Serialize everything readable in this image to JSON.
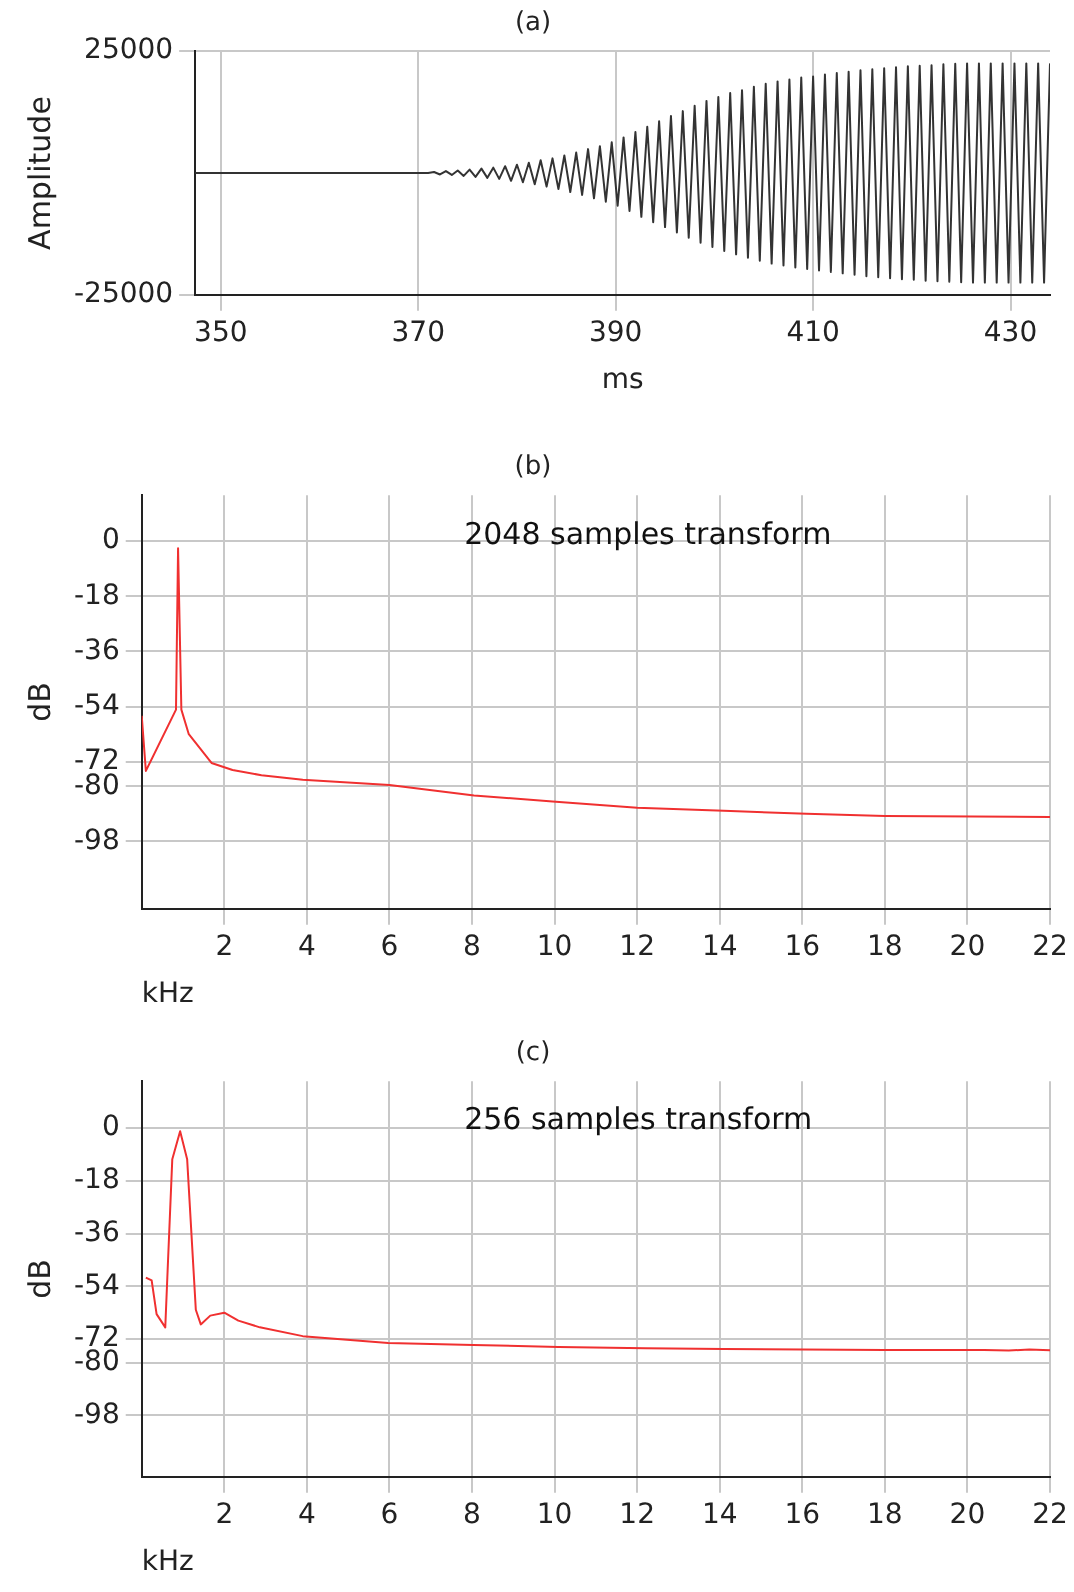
{
  "chart_data": [
    {
      "type": "line",
      "title": "(a)",
      "xlabel": "ms",
      "ylabel": "Amplitude",
      "xlim": [
        347.4,
        434
      ],
      "xticks": [
        350,
        370,
        390,
        410,
        430
      ],
      "ylim": [
        -25000,
        25000
      ],
      "yticks": [
        -25000,
        25000
      ],
      "grid": true,
      "legend": false,
      "series": [
        {
          "color": "#333333",
          "x": [
            347.4,
            371,
            371.6,
            372.2,
            372.8,
            373.4,
            374.0,
            374.6,
            375.2,
            375.8,
            376.4,
            377.0,
            377.6,
            378.2,
            378.8,
            379.4,
            380.0,
            380.6,
            381.2,
            381.8,
            382.4,
            383.0,
            383.6,
            384.2,
            384.8,
            385.4,
            386.0,
            386.6,
            387.2,
            387.8,
            388.4,
            389.0,
            389.6,
            390.2,
            390.8,
            391.4,
            392.0,
            392.6,
            393.2,
            393.8,
            394.4,
            395.0,
            395.6,
            396.2,
            396.8,
            397.4,
            398.0,
            398.6,
            399.2,
            399.8,
            400.4,
            401.0,
            401.6,
            402.2,
            402.8,
            403.4,
            404.0,
            404.6,
            405.2,
            405.8,
            406.4,
            407.0,
            407.6,
            408.2,
            408.8,
            409.4,
            410.0,
            410.6,
            411.2,
            411.8,
            412.4,
            413.0,
            413.6,
            414.2,
            414.8,
            415.4,
            416.0,
            416.6,
            417.2,
            417.8,
            418.4,
            419.0,
            419.6,
            420.2,
            420.8,
            421.4,
            422.0,
            422.6,
            423.2,
            423.8,
            424.4,
            425.0,
            425.6,
            426.2,
            426.8,
            427.4,
            428.0,
            428.6,
            429.2,
            429.8,
            430.4,
            431.0,
            431.6,
            432.2,
            432.8,
            433.4,
            434.0
          ],
          "values": [
            0,
            0,
            200,
            -300,
            400,
            -400,
            500,
            -600,
            700,
            -800,
            900,
            -1000,
            1100,
            -1200,
            1400,
            -1600,
            1700,
            -1900,
            2100,
            -2300,
            2600,
            -2800,
            3000,
            -3300,
            3600,
            -3900,
            4200,
            -4500,
            4900,
            -5200,
            5500,
            -5900,
            6300,
            -6700,
            7300,
            -7800,
            8400,
            -9000,
            9500,
            -10100,
            10600,
            -11100,
            11700,
            -12200,
            12700,
            -13300,
            13800,
            -14300,
            14800,
            -15200,
            15600,
            -16000,
            16400,
            -16700,
            17000,
            -17400,
            17700,
            -18000,
            18300,
            -18600,
            18800,
            -19000,
            19200,
            -19400,
            19600,
            -19700,
            19800,
            -20000,
            20200,
            -20300,
            20500,
            -20600,
            20800,
            -20900,
            21100,
            -21200,
            21300,
            -21400,
            21500,
            -21600,
            21700,
            -21800,
            21900,
            -21900,
            22000,
            -22100,
            22100,
            -22200,
            22300,
            -22300,
            22400,
            -22400,
            22500,
            -22500,
            22500,
            -22500,
            22500,
            -22500,
            22500,
            -22500,
            22500,
            -22500,
            22500,
            -22500,
            22500,
            -22500,
            22500
          ]
        }
      ]
    },
    {
      "type": "line",
      "title": "(b)",
      "xlabel": "kHz",
      "ylabel": "dB",
      "annotations": [
        "2048 samples transform"
      ],
      "xlim": [
        0,
        22
      ],
      "xticks": [
        2,
        4,
        6,
        8,
        10,
        12,
        14,
        16,
        18,
        20,
        22
      ],
      "ylim": [
        -120,
        15
      ],
      "yticks": [
        0,
        -18,
        -36,
        -54,
        -72,
        -80,
        -98
      ],
      "grid": true,
      "legend": false,
      "series": [
        {
          "color": "#f03030",
          "x": [
            0,
            0.1,
            0.83,
            0.88,
            0.96,
            1.14,
            1.69,
            2.2,
            2.9,
            3.9,
            6,
            8.05,
            9.95,
            12,
            14.1,
            16.1,
            18,
            22
          ],
          "values": [
            -57,
            -75,
            -55,
            -2.3,
            -55,
            -63,
            -72.4,
            -74.7,
            -76.4,
            -77.9,
            -79.6,
            -83,
            -85,
            -87,
            -88,
            -89,
            -89.7,
            -90
          ]
        }
      ]
    },
    {
      "type": "line",
      "title": "(c)",
      "xlabel": "kHz",
      "ylabel": "dB",
      "annotations": [
        "256 samples transform"
      ],
      "xlim": [
        0,
        22
      ],
      "xticks": [
        2,
        4,
        6,
        8,
        10,
        12,
        14,
        16,
        18,
        20,
        22
      ],
      "ylim": [
        -119,
        16
      ],
      "yticks": [
        0,
        -18,
        -36,
        -54,
        -72,
        -80,
        -98
      ],
      "grid": true,
      "legend": false,
      "series": [
        {
          "color": "#f03030",
          "x": [
            0.1,
            0.24,
            0.36,
            0.57,
            0.62,
            0.74,
            0.93,
            1.1,
            1.31,
            1.43,
            1.66,
            2.0,
            2.34,
            2.86,
            3.9,
            5.97,
            8.03,
            10.1,
            12.2,
            14.1,
            18.0,
            20.4,
            21.0,
            21.5,
            22
          ],
          "values": [
            -51,
            -52,
            -63.5,
            -68,
            -51,
            -10.6,
            -1.1,
            -10.6,
            -62,
            -67,
            -64,
            -63,
            -65.7,
            -68,
            -71,
            -73.3,
            -74,
            -74.7,
            -75.1,
            -75.4,
            -75.7,
            -75.7,
            -75.9,
            -75.6,
            -75.8
          ]
        }
      ]
    }
  ]
}
